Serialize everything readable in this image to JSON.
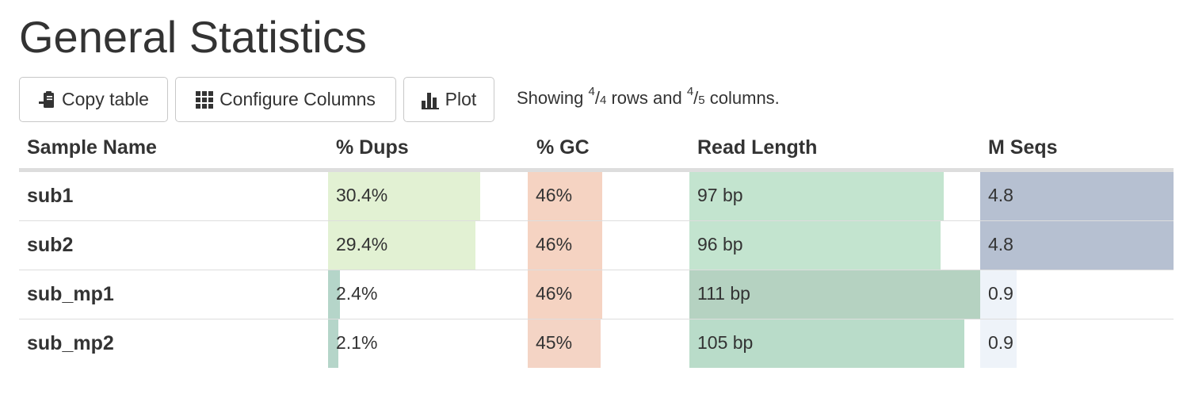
{
  "page": {
    "title": "General Statistics"
  },
  "toolbar": {
    "copy_label": "Copy table",
    "configure_label": "Configure Columns",
    "plot_label": "Plot",
    "showing": {
      "prefix": "Showing ",
      "rows_shown": "4",
      "rows_total": "4",
      "mid": " rows and ",
      "cols_shown": "4",
      "cols_total": "5",
      "suffix": " columns."
    }
  },
  "table": {
    "headers": [
      "Sample Name",
      "% Dups",
      "% GC",
      "Read Length",
      "M Seqs"
    ],
    "rows": [
      {
        "name": "sub1",
        "dups": {
          "text": "30.4%",
          "value": 30.4
        },
        "gc": {
          "text": "46%",
          "value": 46
        },
        "readlen": {
          "text": "97 bp",
          "value": 97
        },
        "mseqs": {
          "text": "4.8",
          "value": 4.8
        }
      },
      {
        "name": "sub2",
        "dups": {
          "text": "29.4%",
          "value": 29.4
        },
        "gc": {
          "text": "46%",
          "value": 46
        },
        "readlen": {
          "text": "96 bp",
          "value": 96
        },
        "mseqs": {
          "text": "4.8",
          "value": 4.8
        }
      },
      {
        "name": "sub_mp1",
        "dups": {
          "text": "2.4%",
          "value": 2.4
        },
        "gc": {
          "text": "46%",
          "value": 46
        },
        "readlen": {
          "text": "111 bp",
          "value": 111
        },
        "mseqs": {
          "text": "0.9",
          "value": 0.9
        }
      },
      {
        "name": "sub_mp2",
        "dups": {
          "text": "2.1%",
          "value": 2.1
        },
        "gc": {
          "text": "45%",
          "value": 45
        },
        "readlen": {
          "text": "105 bp",
          "value": 105
        },
        "mseqs": {
          "text": "0.9",
          "value": 0.9
        }
      }
    ],
    "bar_colors": {
      "dups": [
        "#e2f1d3",
        "#e2f1d3",
        "#b5d5c9",
        "#b5d5c9"
      ],
      "gc": [
        "#f5d3c2",
        "#f5d3c2",
        "#f5d3c2",
        "#f4d4c5"
      ],
      "readlen": [
        "#c3e4cf",
        "#c3e4cf",
        "#b5d2c1",
        "#b9dcc9"
      ],
      "mseqs": [
        "#b6c0d1",
        "#b6c0d1",
        "#eef3f9",
        "#eef3f9"
      ]
    }
  },
  "icons": {
    "copy": "clipboard-icon",
    "configure": "grid-icon",
    "plot": "bar-chart-icon"
  }
}
